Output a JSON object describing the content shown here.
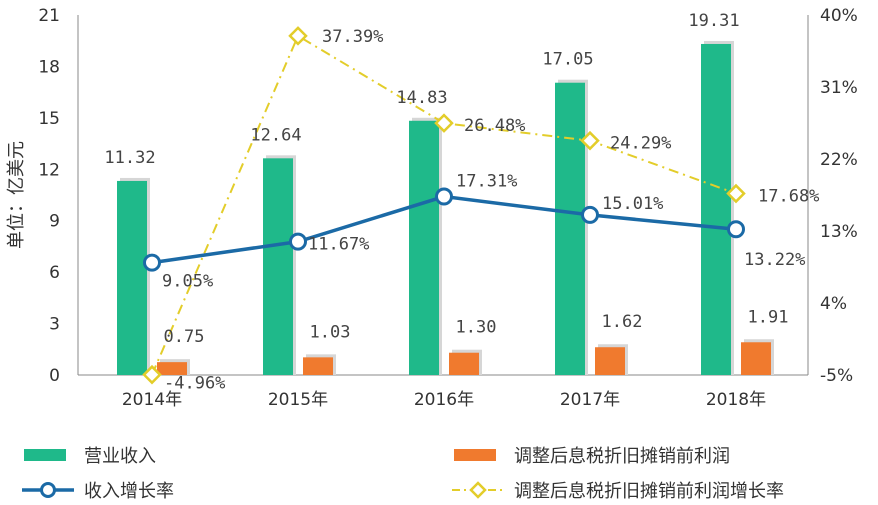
{
  "chart_data": {
    "type": "bar",
    "title": "",
    "xlabel": "",
    "ylabel": "单位：亿美元",
    "categories": [
      "2014年",
      "2015年",
      "2016年",
      "2017年",
      "2018年"
    ],
    "ylim": [
      0,
      21
    ],
    "yticks": [
      0,
      3,
      6,
      9,
      12,
      15,
      18,
      21
    ],
    "y2lim": [
      -5,
      40
    ],
    "y2ticks": [
      "-5%",
      "4%",
      "13%",
      "22%",
      "31%",
      "40%"
    ],
    "y2tick_values": [
      -5,
      4,
      13,
      22,
      31,
      40
    ],
    "grid": false,
    "legend_position": "bottom",
    "colors": {
      "revenue": "#1fb98a",
      "ebitda": "#f07a2e",
      "revenue_growth": "#1b6aa6",
      "ebitda_growth": "#e3cd2a"
    },
    "series": [
      {
        "name": "营业收入",
        "kind": "bar",
        "axis": "left",
        "values": [
          11.32,
          12.64,
          14.83,
          17.05,
          19.31
        ],
        "labels": [
          "11.32",
          "12.64",
          "14.83",
          "17.05",
          "19.31"
        ]
      },
      {
        "name": "调整后息税折旧摊销前利润",
        "kind": "bar",
        "axis": "left",
        "values": [
          0.75,
          1.03,
          1.3,
          1.62,
          1.91
        ],
        "labels": [
          "0.75",
          "1.03",
          "1.30",
          "1.62",
          "1.91"
        ]
      },
      {
        "name": "收入增长率",
        "kind": "line",
        "axis": "right",
        "values": [
          9.05,
          11.67,
          17.31,
          15.01,
          13.22
        ],
        "labels": [
          "9.05%",
          "11.67%",
          "17.31%",
          "15.01%",
          "13.22%"
        ]
      },
      {
        "name": "调整后息税折旧摊销前利润增长率",
        "kind": "line",
        "axis": "right",
        "values": [
          -4.96,
          37.39,
          26.48,
          24.29,
          17.68
        ],
        "labels": [
          "-4.96%",
          "37.39%",
          "26.48%",
          "24.29%",
          "17.68%"
        ]
      }
    ]
  }
}
